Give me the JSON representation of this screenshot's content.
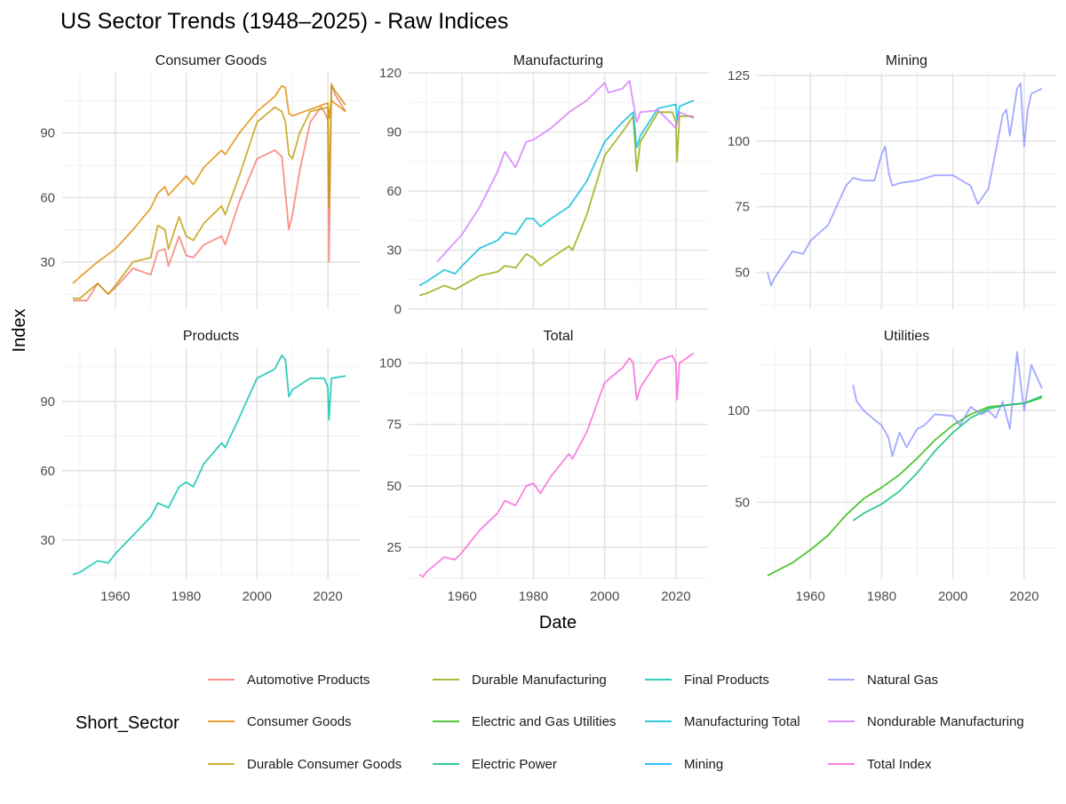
{
  "chart_data": {
    "type": "line",
    "title": "US Sector Trends (1948–2025) - Raw Indices",
    "xlabel": "Date",
    "ylabel": "Index",
    "legend_title": "Short_Sector",
    "legend_position": "bottom",
    "grid": true,
    "legend": [
      {
        "name": "Automotive Products",
        "color": "#F8766D"
      },
      {
        "name": "Consumer Goods",
        "color": "#E18A00"
      },
      {
        "name": "Durable Consumer Goods",
        "color": "#BE9C00"
      },
      {
        "name": "Durable Manufacturing",
        "color": "#8CAB00"
      },
      {
        "name": "Electric and Gas Utilities",
        "color": "#24B700"
      },
      {
        "name": "Electric Power",
        "color": "#00BE70"
      },
      {
        "name": "Final Products",
        "color": "#00C1AB"
      },
      {
        "name": "Manufacturing Total",
        "color": "#00BBDA"
      },
      {
        "name": "Mining",
        "color": "#00ACFC"
      },
      {
        "name": "Natural Gas",
        "color": "#8B93FF"
      },
      {
        "name": "Nondurable Manufacturing",
        "color": "#D575FE"
      },
      {
        "name": "Total Index",
        "color": "#F962DD"
      }
    ],
    "panels": [
      {
        "title": "Consumer Goods",
        "x_ticks": [
          1960,
          1980,
          2000,
          2020
        ],
        "y_ticks": [
          30,
          60,
          90
        ],
        "ylim": [
          8,
          118
        ],
        "series": [
          {
            "name": "Automotive Products",
            "color": "#F8766D",
            "x": [
              1948,
              1952,
              1955,
              1958,
              1960,
              1965,
              1970,
              1972,
              1974,
              1975,
              1978,
              1980,
              1982,
              1985,
              1990,
              1991,
              1995,
              2000,
              2005,
              2007,
              2009,
              2010,
              2012,
              2015,
              2018,
              2019,
              2020,
              2020.3,
              2021,
              2022,
              2025
            ],
            "y": [
              12,
              12,
              20,
              15,
              18,
              27,
              24,
              35,
              36,
              28,
              42,
              33,
              32,
              38,
              42,
              38,
              58,
              78,
              82,
              79,
              45,
              52,
              72,
              95,
              102,
              100,
              96,
              30,
              113,
              108,
              100
            ]
          },
          {
            "name": "Consumer Goods",
            "color": "#E18A00",
            "x": [
              1948,
              1950,
              1955,
              1960,
              1965,
              1970,
              1972,
              1974,
              1975,
              1980,
              1982,
              1985,
              1990,
              1991,
              1995,
              2000,
              2005,
              2007,
              2008,
              2009,
              2010,
              2015,
              2020,
              2020.3,
              2021,
              2025
            ],
            "y": [
              20,
              23,
              30,
              36,
              45,
              55,
              62,
              65,
              61,
              70,
              66,
              74,
              82,
              80,
              90,
              100,
              107,
              112,
              111,
              99,
              98,
              101,
              104,
              97,
              105,
              100
            ]
          },
          {
            "name": "Durable Consumer Goods",
            "color": "#BE9C00",
            "x": [
              1948,
              1950,
              1955,
              1958,
              1960,
              1965,
              1970,
              1972,
              1974,
              1975,
              1978,
              1980,
              1982,
              1985,
              1990,
              1991,
              1995,
              2000,
              2005,
              2007,
              2008,
              2009,
              2010,
              2012,
              2015,
              2020,
              2020.3,
              2021,
              2025
            ],
            "y": [
              13,
              13,
              20,
              15,
              19,
              30,
              32,
              47,
              45,
              36,
              51,
              42,
              40,
              48,
              56,
              52,
              70,
              95,
              102,
              100,
              95,
              80,
              78,
              90,
              100,
              102,
              55,
              112,
              103
            ]
          }
        ]
      },
      {
        "title": "Manufacturing",
        "x_ticks": [
          1960,
          1980,
          2000,
          2020
        ],
        "y_ticks": [
          0,
          30,
          60,
          90,
          120
        ],
        "ylim": [
          0,
          120
        ],
        "series": [
          {
            "name": "Durable Manufacturing",
            "color": "#8CAB00",
            "x": [
              1948,
              1950,
              1955,
              1958,
              1960,
              1965,
              1970,
              1972,
              1975,
              1978,
              1980,
              1982,
              1985,
              1990,
              1991,
              1995,
              2000,
              2005,
              2008,
              2009,
              2010,
              2015,
              2019,
              2020,
              2020.3,
              2021,
              2025
            ],
            "y": [
              7,
              8,
              12,
              10,
              12,
              17,
              19,
              22,
              21,
              28,
              26,
              22,
              26,
              32,
              30,
              48,
              78,
              90,
              98,
              70,
              85,
              100,
              100,
              95,
              75,
              98,
              98
            ]
          },
          {
            "name": "Manufacturing Total",
            "color": "#00BBDA",
            "x": [
              1948,
              1950,
              1955,
              1958,
              1960,
              1965,
              1970,
              1972,
              1975,
              1978,
              1980,
              1982,
              1985,
              1990,
              1995,
              2000,
              2005,
              2008,
              2009,
              2010,
              2015,
              2020,
              2020.3,
              2021,
              2025
            ],
            "y": [
              12,
              14,
              20,
              18,
              22,
              31,
              35,
              39,
              38,
              46,
              46,
              42,
              46,
              52,
              65,
              85,
              95,
              100,
              82,
              88,
              102,
              104,
              96,
              103,
              106
            ]
          },
          {
            "name": "Nondurable Manufacturing",
            "color": "#D575FE",
            "x": [
              1953,
              1955,
              1960,
              1965,
              1970,
              1972,
              1975,
              1978,
              1980,
              1985,
              1990,
              1995,
              2000,
              2001,
              2005,
              2007,
              2008,
              2009,
              2010,
              2015,
              2020,
              2021,
              2025
            ],
            "y": [
              24,
              28,
              38,
              52,
              70,
              80,
              72,
              85,
              86,
              92,
              100,
              106,
              115,
              110,
              112,
              116,
              105,
              95,
              100,
              101,
              92,
              100,
              97
            ]
          }
        ]
      },
      {
        "title": "Mining",
        "x_ticks": [
          1960,
          1980,
          2000,
          2020
        ],
        "y_ticks": [
          50,
          75,
          100,
          125
        ],
        "ylim": [
          36,
          126
        ],
        "series": [
          {
            "name": "Mining",
            "color": "#8B93FF",
            "x": [
              1948,
              1949,
              1950,
              1955,
              1958,
              1960,
              1965,
              1970,
              1972,
              1975,
              1978,
              1980,
              1981,
              1982,
              1983,
              1985,
              1990,
              1995,
              2000,
              2005,
              2007,
              2009,
              2010,
              2012,
              2014,
              2015,
              2016,
              2018,
              2019,
              2020,
              2021,
              2022,
              2025
            ],
            "y": [
              50,
              45,
              48,
              58,
              57,
              62,
              68,
              83,
              86,
              85,
              85,
              95,
              98,
              88,
              83,
              84,
              85,
              87,
              87,
              83,
              76,
              80,
              82,
              96,
              110,
              112,
              102,
              120,
              122,
              98,
              112,
              118,
              120
            ]
          }
        ]
      },
      {
        "title": "Products",
        "x_ticks": [
          1960,
          1980,
          2000,
          2020
        ],
        "y_ticks": [
          30,
          60,
          90
        ],
        "ylim": [
          13,
          113
        ],
        "series": [
          {
            "name": "Final Products",
            "color": "#00C1AB",
            "x": [
              1948,
              1950,
              1955,
              1958,
              1960,
              1965,
              1970,
              1972,
              1975,
              1978,
              1980,
              1982,
              1985,
              1990,
              1991,
              1995,
              2000,
              2005,
              2007,
              2008,
              2009,
              2010,
              2015,
              2019,
              2020,
              2020.3,
              2021,
              2025
            ],
            "y": [
              15,
              16,
              21,
              20,
              24,
              32,
              40,
              46,
              44,
              53,
              55,
              53,
              63,
              72,
              70,
              83,
              100,
              104,
              110,
              108,
              92,
              95,
              100,
              100,
              96,
              82,
              100,
              101
            ]
          }
        ]
      },
      {
        "title": "Total",
        "x_ticks": [
          1960,
          1980,
          2000,
          2020
        ],
        "y_ticks": [
          25,
          50,
          75,
          100
        ],
        "ylim": [
          12,
          106
        ],
        "series": [
          {
            "name": "Total Index",
            "color": "#F962DD",
            "x": [
              1948,
              1949,
              1950,
              1955,
              1958,
              1960,
              1965,
              1970,
              1972,
              1975,
              1978,
              1980,
              1982,
              1985,
              1990,
              1991,
              1995,
              2000,
              2005,
              2007,
              2008,
              2009,
              2010,
              2015,
              2019,
              2020,
              2020.3,
              2021,
              2025
            ],
            "y": [
              14,
              13,
              15,
              21,
              20,
              23,
              32,
              39,
              44,
              42,
              50,
              51,
              47,
              54,
              63,
              61,
              72,
              92,
              98,
              102,
              100,
              85,
              90,
              101,
              103,
              100,
              85,
              100,
              104
            ]
          }
        ]
      },
      {
        "title": "Utilities",
        "x_ticks": [
          1960,
          1980,
          2000,
          2020
        ],
        "y_ticks": [
          50,
          100
        ],
        "ylim": [
          8,
          134
        ],
        "series": [
          {
            "name": "Electric and Gas Utilities",
            "color": "#24B700",
            "x": [
              1948,
              1950,
              1955,
              1960,
              1965,
              1970,
              1975,
              1980,
              1985,
              1990,
              1995,
              2000,
              2005,
              2010,
              2015,
              2020,
              2025
            ],
            "y": [
              10,
              12,
              17,
              24,
              32,
              43,
              52,
              58,
              65,
              74,
              84,
              92,
              98,
              102,
              103,
              104,
              107
            ]
          },
          {
            "name": "Electric Power",
            "color": "#00BE70",
            "x": [
              1972,
              1975,
              1980,
              1985,
              1990,
              1995,
              2000,
              2005,
              2010,
              2015,
              2020,
              2025
            ],
            "y": [
              40,
              44,
              49,
              56,
              66,
              78,
              88,
              96,
              101,
              103,
              104,
              108
            ]
          },
          {
            "name": "Natural Gas",
            "color": "#8B93FF",
            "x": [
              1972,
              1973,
              1975,
              1978,
              1980,
              1982,
              1983,
              1985,
              1987,
              1990,
              1992,
              1995,
              2000,
              2002,
              2005,
              2008,
              2010,
              2012,
              2014,
              2016,
              2018,
              2019,
              2020,
              2022,
              2025
            ],
            "y": [
              114,
              105,
              100,
              95,
              92,
              85,
              75,
              88,
              80,
              90,
              92,
              98,
              97,
              92,
              102,
              98,
              100,
              96,
              105,
              90,
              132,
              115,
              100,
              125,
              112
            ]
          }
        ]
      }
    ]
  }
}
